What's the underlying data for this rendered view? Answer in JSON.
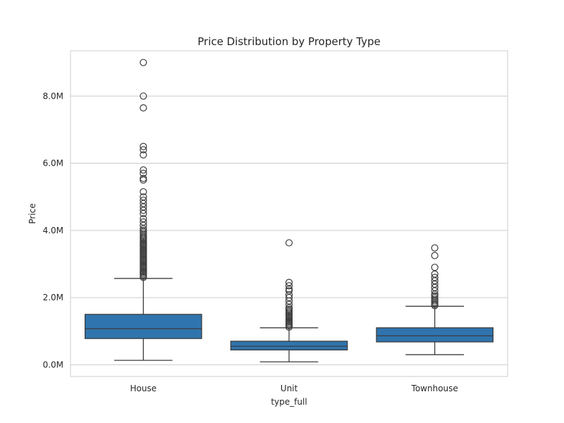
{
  "chart_data": {
    "type": "box",
    "title": "Price Distribution by Property Type",
    "xlabel": "type_full",
    "ylabel": "Price",
    "ylim": [
      -350000,
      9350000
    ],
    "yticks": [
      0,
      2000000,
      4000000,
      6000000,
      8000000
    ],
    "ytick_labels": [
      "0.0M",
      "2.0M",
      "4.0M",
      "6.0M",
      "8.0M"
    ],
    "grid": "horizontal",
    "box_color": "#2f74ae",
    "edge_color": "#3d3d3d",
    "grid_color": "#cccccc",
    "categories": [
      "House",
      "Unit",
      "Townhouse"
    ],
    "boxes": [
      {
        "category": "House",
        "whisker_low": 130000,
        "q1": 780000,
        "median": 1070000,
        "q3": 1500000,
        "whisker_high": 2570000,
        "outliers": [
          2600000,
          2640000,
          2680000,
          2720000,
          2760000,
          2800000,
          2840000,
          2880000,
          2920000,
          2960000,
          3000000,
          3040000,
          3080000,
          3120000,
          3160000,
          3200000,
          3240000,
          3280000,
          3320000,
          3360000,
          3400000,
          3440000,
          3480000,
          3520000,
          3560000,
          3600000,
          3640000,
          3680000,
          3720000,
          3760000,
          3800000,
          3850000,
          3900000,
          3950000,
          4000000,
          4050000,
          4150000,
          4250000,
          4350000,
          4500000,
          4600000,
          4700000,
          4800000,
          4900000,
          5000000,
          5150000,
          5500000,
          5550000,
          5700000,
          5800000,
          6250000,
          6400000,
          6500000,
          7650000,
          8000000,
          9000000
        ]
      },
      {
        "category": "Unit",
        "whisker_low": 85000,
        "q1": 440000,
        "median": 550000,
        "q3": 700000,
        "whisker_high": 1100000,
        "outliers": [
          1120000,
          1160000,
          1200000,
          1240000,
          1280000,
          1320000,
          1360000,
          1400000,
          1440000,
          1480000,
          1520000,
          1560000,
          1600000,
          1650000,
          1700000,
          1800000,
          1900000,
          2000000,
          2080000,
          2200000,
          2250000,
          2350000,
          2450000,
          3630000
        ]
      },
      {
        "category": "Townhouse",
        "whisker_low": 300000,
        "q1": 680000,
        "median": 860000,
        "q3": 1100000,
        "whisker_high": 1740000,
        "outliers": [
          1760000,
          1800000,
          1850000,
          1900000,
          1950000,
          2000000,
          2050000,
          2100000,
          2200000,
          2300000,
          2400000,
          2500000,
          2600000,
          2700000,
          2900000,
          3250000,
          3480000
        ]
      }
    ]
  }
}
